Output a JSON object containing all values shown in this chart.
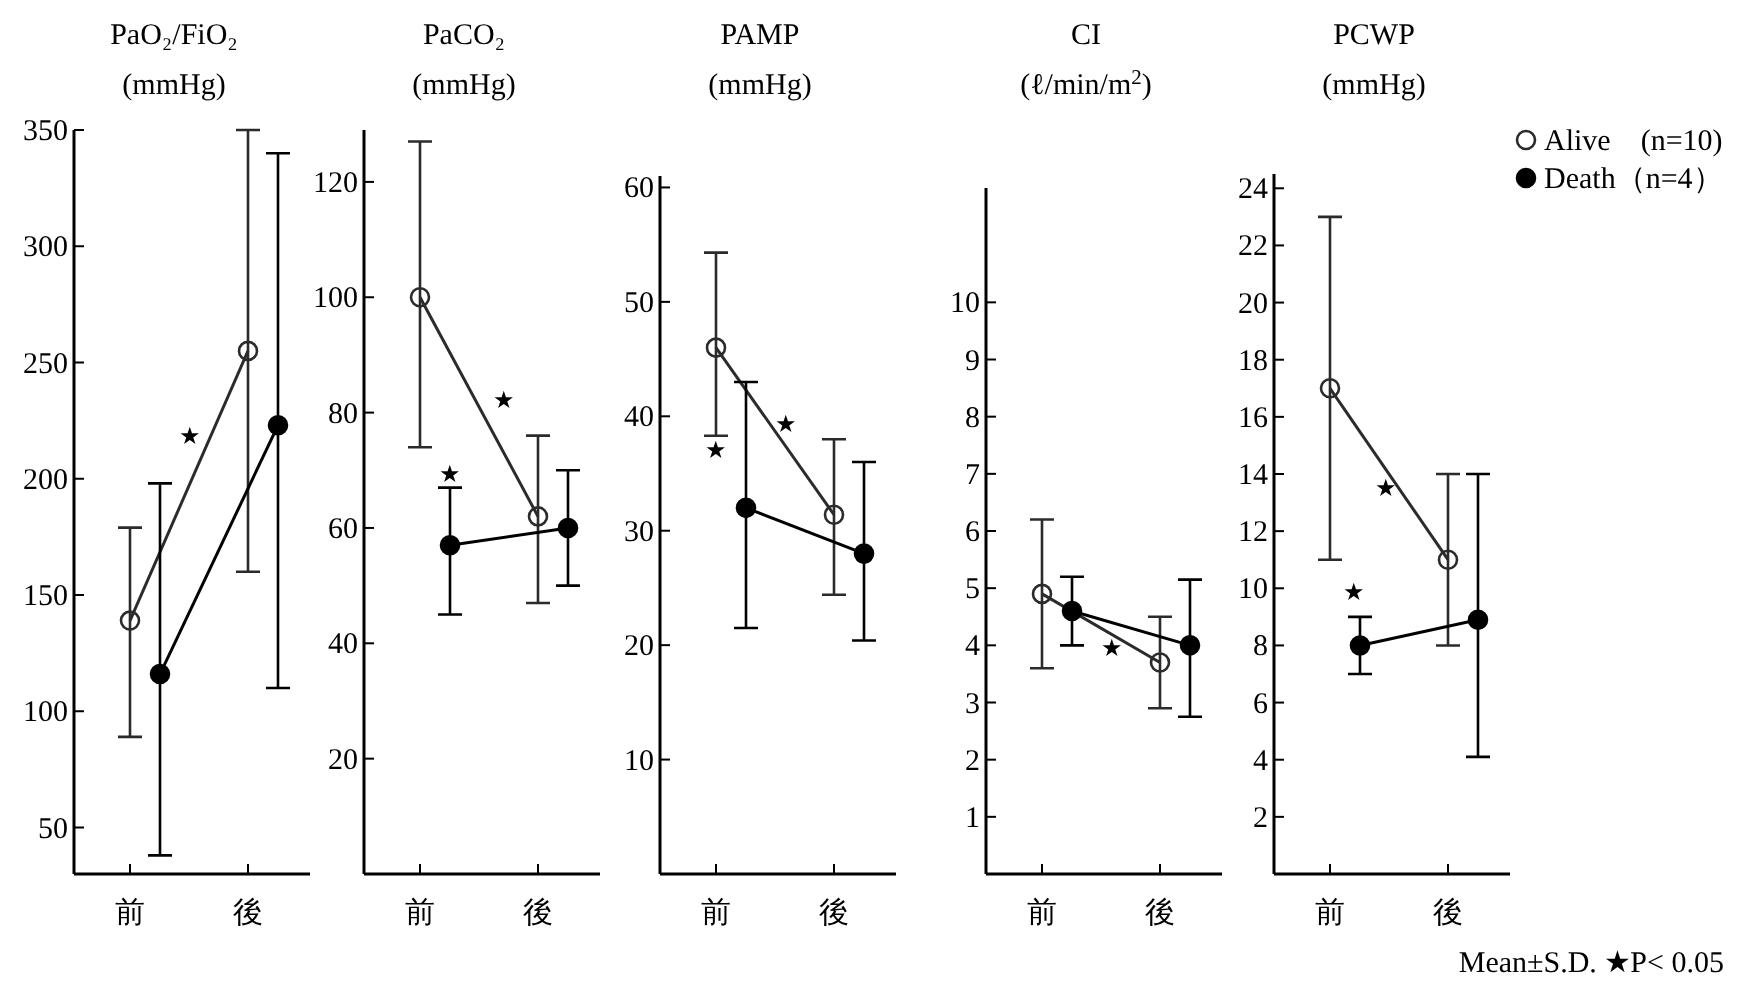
{
  "chart_data": [
    {
      "type": "line",
      "title": "PaO₂/FiO₂",
      "subtitle": "(mmHg)",
      "categories": [
        "前",
        "後"
      ],
      "ylim": [
        30,
        350
      ],
      "yticks": [
        50,
        100,
        150,
        200,
        250,
        300,
        350
      ],
      "marker": "circle",
      "series": [
        {
          "color": "#2b2b2b",
          "values": [
            139,
            255
          ],
          "errors": [
            [
              89,
              179
            ],
            [
              160,
              350
            ]
          ]
        },
        {
          "color": "#000000",
          "values": [
            116,
            223
          ],
          "errors": [
            [
              38,
              198
            ],
            [
              110,
              340
            ]
          ]
        }
      ],
      "annotations": [
        "★"
      ]
    },
    {
      "type": "line",
      "title": "PaCO₂",
      "subtitle": "(mmHg)",
      "categories": [
        "前",
        "後"
      ],
      "ylim": [
        0,
        129
      ],
      "yticks": [
        20,
        40,
        60,
        80,
        100,
        120
      ],
      "marker": "circle",
      "series": [
        {
          "color": "#2b2b2b",
          "values": [
            100,
            62
          ],
          "errors": [
            [
              74,
              127
            ],
            [
              47,
              76
            ]
          ]
        },
        {
          "color": "#000000",
          "values": [
            57,
            60
          ],
          "errors": [
            [
              45,
              67
            ],
            [
              50,
              70
            ]
          ]
        }
      ],
      "annotations": [
        "★",
        "★"
      ]
    },
    {
      "type": "line",
      "title": "PAMP",
      "subtitle": "(mmHg)",
      "categories": [
        "前",
        "後"
      ],
      "ylim": [
        0,
        61
      ],
      "yticks": [
        10,
        20,
        30,
        40,
        50,
        60
      ],
      "marker": "circle",
      "series": [
        {
          "color": "#2b2b2b",
          "values": [
            46,
            31.4
          ],
          "errors": [
            [
              38.3,
              54.3
            ],
            [
              24.4,
              38
            ]
          ]
        },
        {
          "color": "#000000",
          "values": [
            32,
            28
          ],
          "errors": [
            [
              21.5,
              43
            ],
            [
              20.4,
              36
            ]
          ]
        }
      ],
      "annotations": [
        "★",
        "★"
      ]
    },
    {
      "type": "line",
      "title": "CI",
      "subtitle": "(ℓ/min/m$^{2}$)",
      "categories": [
        "前",
        "後"
      ],
      "ylim": [
        0,
        12
      ],
      "yticks": [
        1,
        2,
        3,
        4,
        5,
        6,
        7,
        8,
        9,
        10
      ],
      "marker": "circle",
      "series": [
        {
          "color": "#2b2b2b",
          "values": [
            4.9,
            3.7
          ],
          "errors": [
            [
              3.6,
              6.2
            ],
            [
              2.9,
              4.5
            ]
          ]
        },
        {
          "color": "#000000",
          "values": [
            4.6,
            4.0
          ],
          "errors": [
            [
              4.0,
              5.2
            ],
            [
              2.75,
              5.15
            ]
          ]
        }
      ],
      "annotations": [
        "★"
      ]
    },
    {
      "type": "line",
      "title": "PCWP",
      "subtitle": "(mmHg)",
      "categories": [
        "前",
        "後"
      ],
      "ylim": [
        0,
        24.5
      ],
      "yticks": [
        2,
        4,
        6,
        8,
        10,
        12,
        14,
        16,
        18,
        20,
        22,
        24
      ],
      "marker": "circle",
      "legend": "top right",
      "series": [
        {
          "name": "Alive　(n=10)",
          "color": "#2b2b2b",
          "values": [
            17,
            11
          ],
          "errors": [
            [
              11,
              23
            ],
            [
              8,
              14
            ]
          ]
        },
        {
          "name": "Death（n=4）",
          "color": "#000000",
          "values": [
            8,
            8.9
          ],
          "errors": [
            [
              7,
              9
            ],
            [
              4.1,
              14
            ]
          ]
        }
      ],
      "annotations": [
        "★",
        "★",
        "Mean±S.D. ★P< 0.05"
      ]
    }
  ]
}
